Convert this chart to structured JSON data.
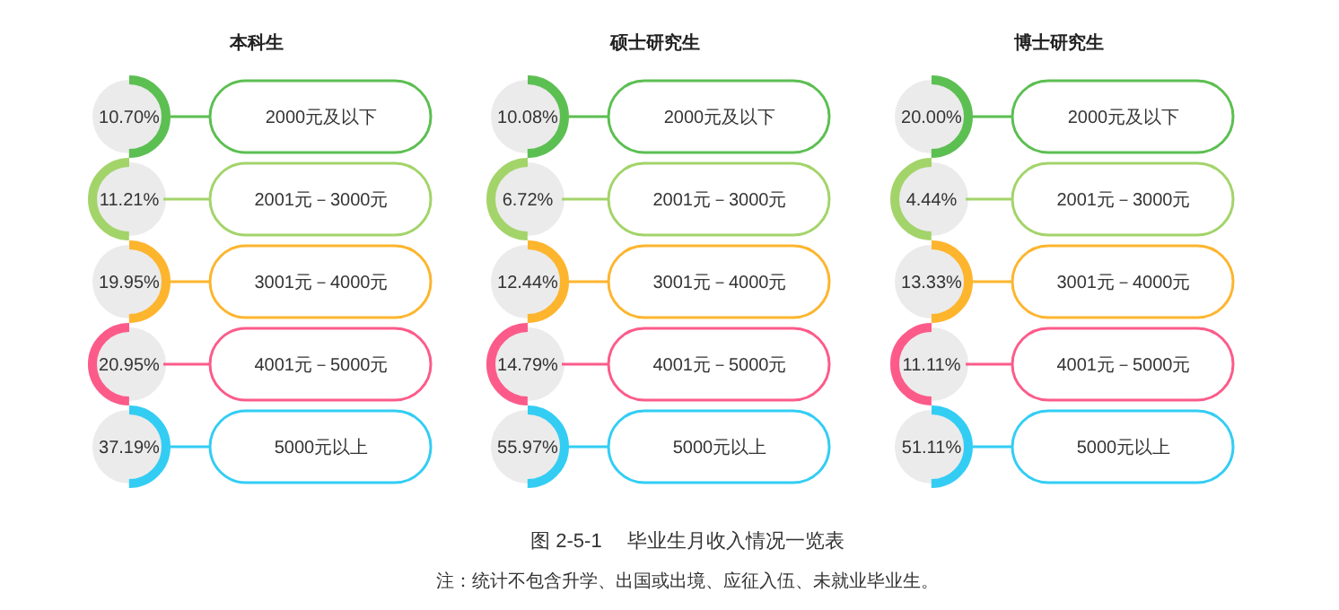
{
  "chart_data": [
    {
      "type": "other",
      "title": "本科生",
      "categories": [
        "2000元及以下",
        "2001元－3000元",
        "3001元－4000元",
        "4001元－5000元",
        "5000元以上"
      ],
      "values": [
        10.7,
        11.21,
        19.95,
        20.95,
        37.19
      ],
      "value_labels": [
        "10.70%",
        "11.21%",
        "19.95%",
        "20.95%",
        "37.19%"
      ],
      "colors": [
        "#5cbf52",
        "#a3d46a",
        "#fdb52e",
        "#fc5b8a",
        "#33cdf4"
      ]
    },
    {
      "type": "other",
      "title": "硕士研究生",
      "categories": [
        "2000元及以下",
        "2001元－3000元",
        "3001元－4000元",
        "4001元－5000元",
        "5000元以上"
      ],
      "values": [
        10.08,
        6.72,
        12.44,
        14.79,
        55.97
      ],
      "value_labels": [
        "10.08%",
        "6.72%",
        "12.44%",
        "14.79%",
        "55.97%"
      ],
      "colors": [
        "#5cbf52",
        "#a3d46a",
        "#fdb52e",
        "#fc5b8a",
        "#33cdf4"
      ]
    },
    {
      "type": "other",
      "title": "博士研究生",
      "categories": [
        "2000元及以下",
        "2001元－3000元",
        "3001元－4000元",
        "4001元－5000元",
        "5000元以上"
      ],
      "values": [
        20.0,
        4.44,
        13.33,
        11.11,
        51.11
      ],
      "value_labels": [
        "20.00%",
        "4.44%",
        "13.33%",
        "11.11%",
        "51.11%"
      ],
      "colors": [
        "#5cbf52",
        "#a3d46a",
        "#fdb52e",
        "#fc5b8a",
        "#33cdf4"
      ]
    },
    {
      "type": "other",
      "annotations": [
        "图 2-5-1　 毕业生月收入情况一览表",
        "注：统计不包含升学、出国或出境、应征入伍、未就业毕业生。"
      ]
    }
  ]
}
